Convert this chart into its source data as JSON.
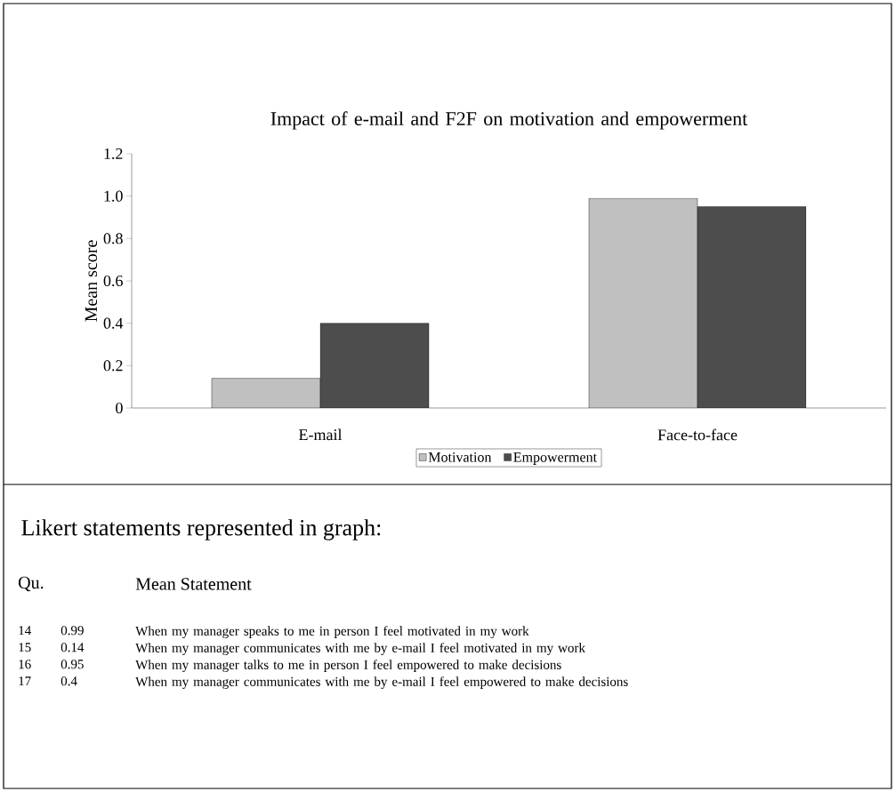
{
  "chart_data": {
    "type": "bar",
    "title": "Impact of e-mail and F2F on motivation and empowerment",
    "categories": [
      "E-mail",
      "Face-to-face"
    ],
    "series": [
      {
        "name": "Motivation",
        "color": "#c0c0c0",
        "values": [
          0.14,
          0.99
        ]
      },
      {
        "name": "Empowerment",
        "color": "#4d4d4d",
        "values": [
          0.4,
          0.95
        ]
      }
    ],
    "ylabel": "Mean score",
    "ylim": [
      0,
      1.2
    ],
    "yticks": [
      0,
      0.2,
      0.4,
      0.6,
      0.8,
      {
        "value": 1,
        "label": "1.0"
      },
      1.2
    ],
    "legend": "bottom",
    "grid": false,
    "annotations": [
      "Likert statements represented in graph:",
      "Qu.",
      "Mean Statement",
      "14",
      "0.99",
      "When my manager speaks to me in person I feel motivated in my work",
      "15",
      "0.14",
      "When my manager communicates with me by e-mail I feel motivated in my work",
      "16",
      "0.95",
      "When my manager talks to me in person I feel empowered to make decisions",
      "17",
      "0.4",
      "When my manager communicates with me by e-mail I feel empowered to make decisions"
    ]
  }
}
